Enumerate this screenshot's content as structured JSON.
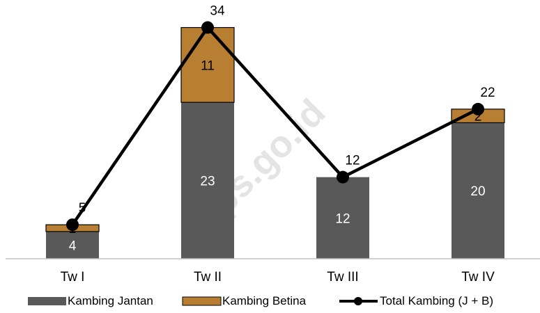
{
  "chart_data": {
    "type": "bar",
    "stacked": true,
    "categories": [
      "Tw I",
      "Tw II",
      "Tw III",
      "Tw IV"
    ],
    "series": [
      {
        "name": "Kambing Jantan",
        "kind": "bar",
        "color": "#595959",
        "label_color": "#ffffff",
        "values": [
          4,
          23,
          12,
          20
        ]
      },
      {
        "name": "Kambing Betina",
        "kind": "bar",
        "color": "#b87f33",
        "label_color": "#000000",
        "values": [
          1,
          11,
          0,
          2
        ]
      },
      {
        "name": "Total Kambing (J + B)",
        "kind": "line",
        "color": "#000000",
        "values": [
          5,
          34,
          12,
          22
        ]
      }
    ],
    "data_labels": {
      "Kambing Jantan": [
        "4",
        "23",
        "12",
        "20"
      ],
      "Kambing Betina": [
        "1",
        "11",
        "",
        "2"
      ],
      "Total Kambing (J + B)": [
        "5",
        "34",
        "12",
        "22"
      ]
    },
    "ylim": [
      0,
      36
    ],
    "grid": false,
    "legend": "bottom",
    "watermark": "bps.go.id"
  }
}
